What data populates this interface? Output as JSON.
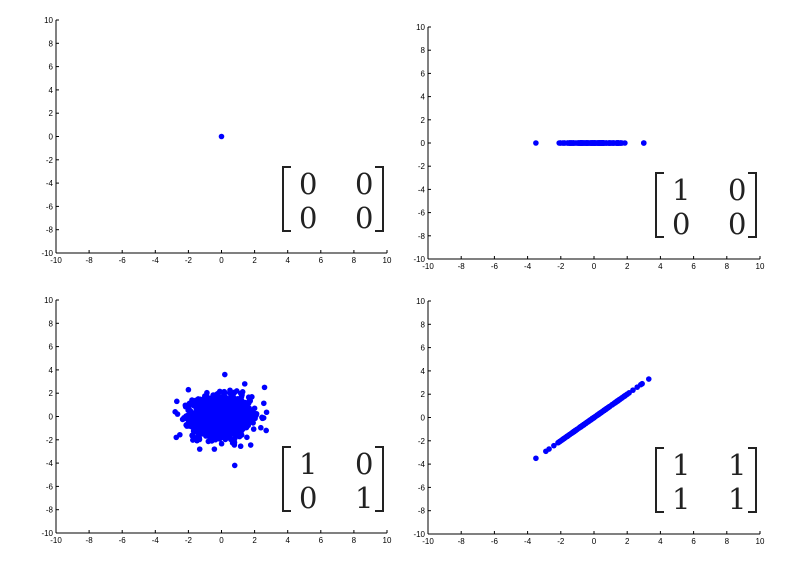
{
  "colors": {
    "points": "#0000ff",
    "axes": "#000000",
    "matrix": "#222222"
  },
  "chart_data": [
    {
      "type": "scatter",
      "title": "",
      "xlabel": "",
      "ylabel": "",
      "xlim": [
        -10,
        10
      ],
      "ylim": [
        -10,
        10
      ],
      "xticks": [
        "-10",
        "-8",
        "-6",
        "-4",
        "-2",
        "0",
        "2",
        "4",
        "6",
        "8",
        "10"
      ],
      "yticks": [
        "-10",
        "-8",
        "-6",
        "-4",
        "-2",
        "0",
        "2",
        "4",
        "6",
        "8",
        "10"
      ],
      "grid": false,
      "matrix": [
        [
          "0",
          "0"
        ],
        [
          "0",
          "0"
        ]
      ],
      "series": [
        {
          "distribution": "origin",
          "x": [
            0
          ],
          "y": [
            0
          ]
        }
      ]
    },
    {
      "type": "scatter",
      "title": "",
      "xlabel": "",
      "ylabel": "",
      "xlim": [
        -10,
        10
      ],
      "ylim": [
        -10,
        10
      ],
      "xticks": [
        "-10",
        "-8",
        "-6",
        "-4",
        "-2",
        "0",
        "2",
        "4",
        "6",
        "8",
        "10"
      ],
      "yticks": [
        "-10",
        "-8",
        "-6",
        "-4",
        "-2",
        "0",
        "2",
        "4",
        "6",
        "8",
        "10"
      ],
      "grid": false,
      "matrix": [
        [
          "1",
          "0"
        ],
        [
          "0",
          "0"
        ]
      ],
      "series": [
        {
          "distribution": "x-axis",
          "x_range": [
            -3.5,
            3.0
          ],
          "y": 0
        }
      ]
    },
    {
      "type": "scatter",
      "title": "",
      "xlabel": "",
      "ylabel": "",
      "xlim": [
        -10,
        10
      ],
      "ylim": [
        -10,
        10
      ],
      "xticks": [
        "-10",
        "-8",
        "-6",
        "-4",
        "-2",
        "0",
        "2",
        "4",
        "6",
        "8",
        "10"
      ],
      "yticks": [
        "-10",
        "-8",
        "-6",
        "-4",
        "-2",
        "0",
        "2",
        "4",
        "6",
        "8",
        "10"
      ],
      "grid": false,
      "matrix": [
        [
          "1",
          "0"
        ],
        [
          "0",
          "1"
        ]
      ],
      "series": [
        {
          "distribution": "gaussian-cloud",
          "center": [
            0,
            0
          ],
          "std": 1,
          "x_range": [
            -2.8,
            2.8
          ],
          "y_range": [
            -4.2,
            3.6
          ]
        }
      ]
    },
    {
      "type": "scatter",
      "title": "",
      "xlabel": "",
      "ylabel": "",
      "xlim": [
        -10,
        10
      ],
      "ylim": [
        -10,
        10
      ],
      "xticks": [
        "-10",
        "-8",
        "-6",
        "-4",
        "-2",
        "0",
        "2",
        "4",
        "6",
        "8",
        "10"
      ],
      "yticks": [
        "-10",
        "-8",
        "-6",
        "-4",
        "-2",
        "0",
        "2",
        "4",
        "6",
        "8",
        "10"
      ],
      "grid": false,
      "matrix": [
        [
          "1",
          "1"
        ],
        [
          "1",
          "1"
        ]
      ],
      "series": [
        {
          "distribution": "diagonal-line",
          "x_range": [
            -3.5,
            3.3
          ],
          "slope": 1
        }
      ]
    }
  ]
}
